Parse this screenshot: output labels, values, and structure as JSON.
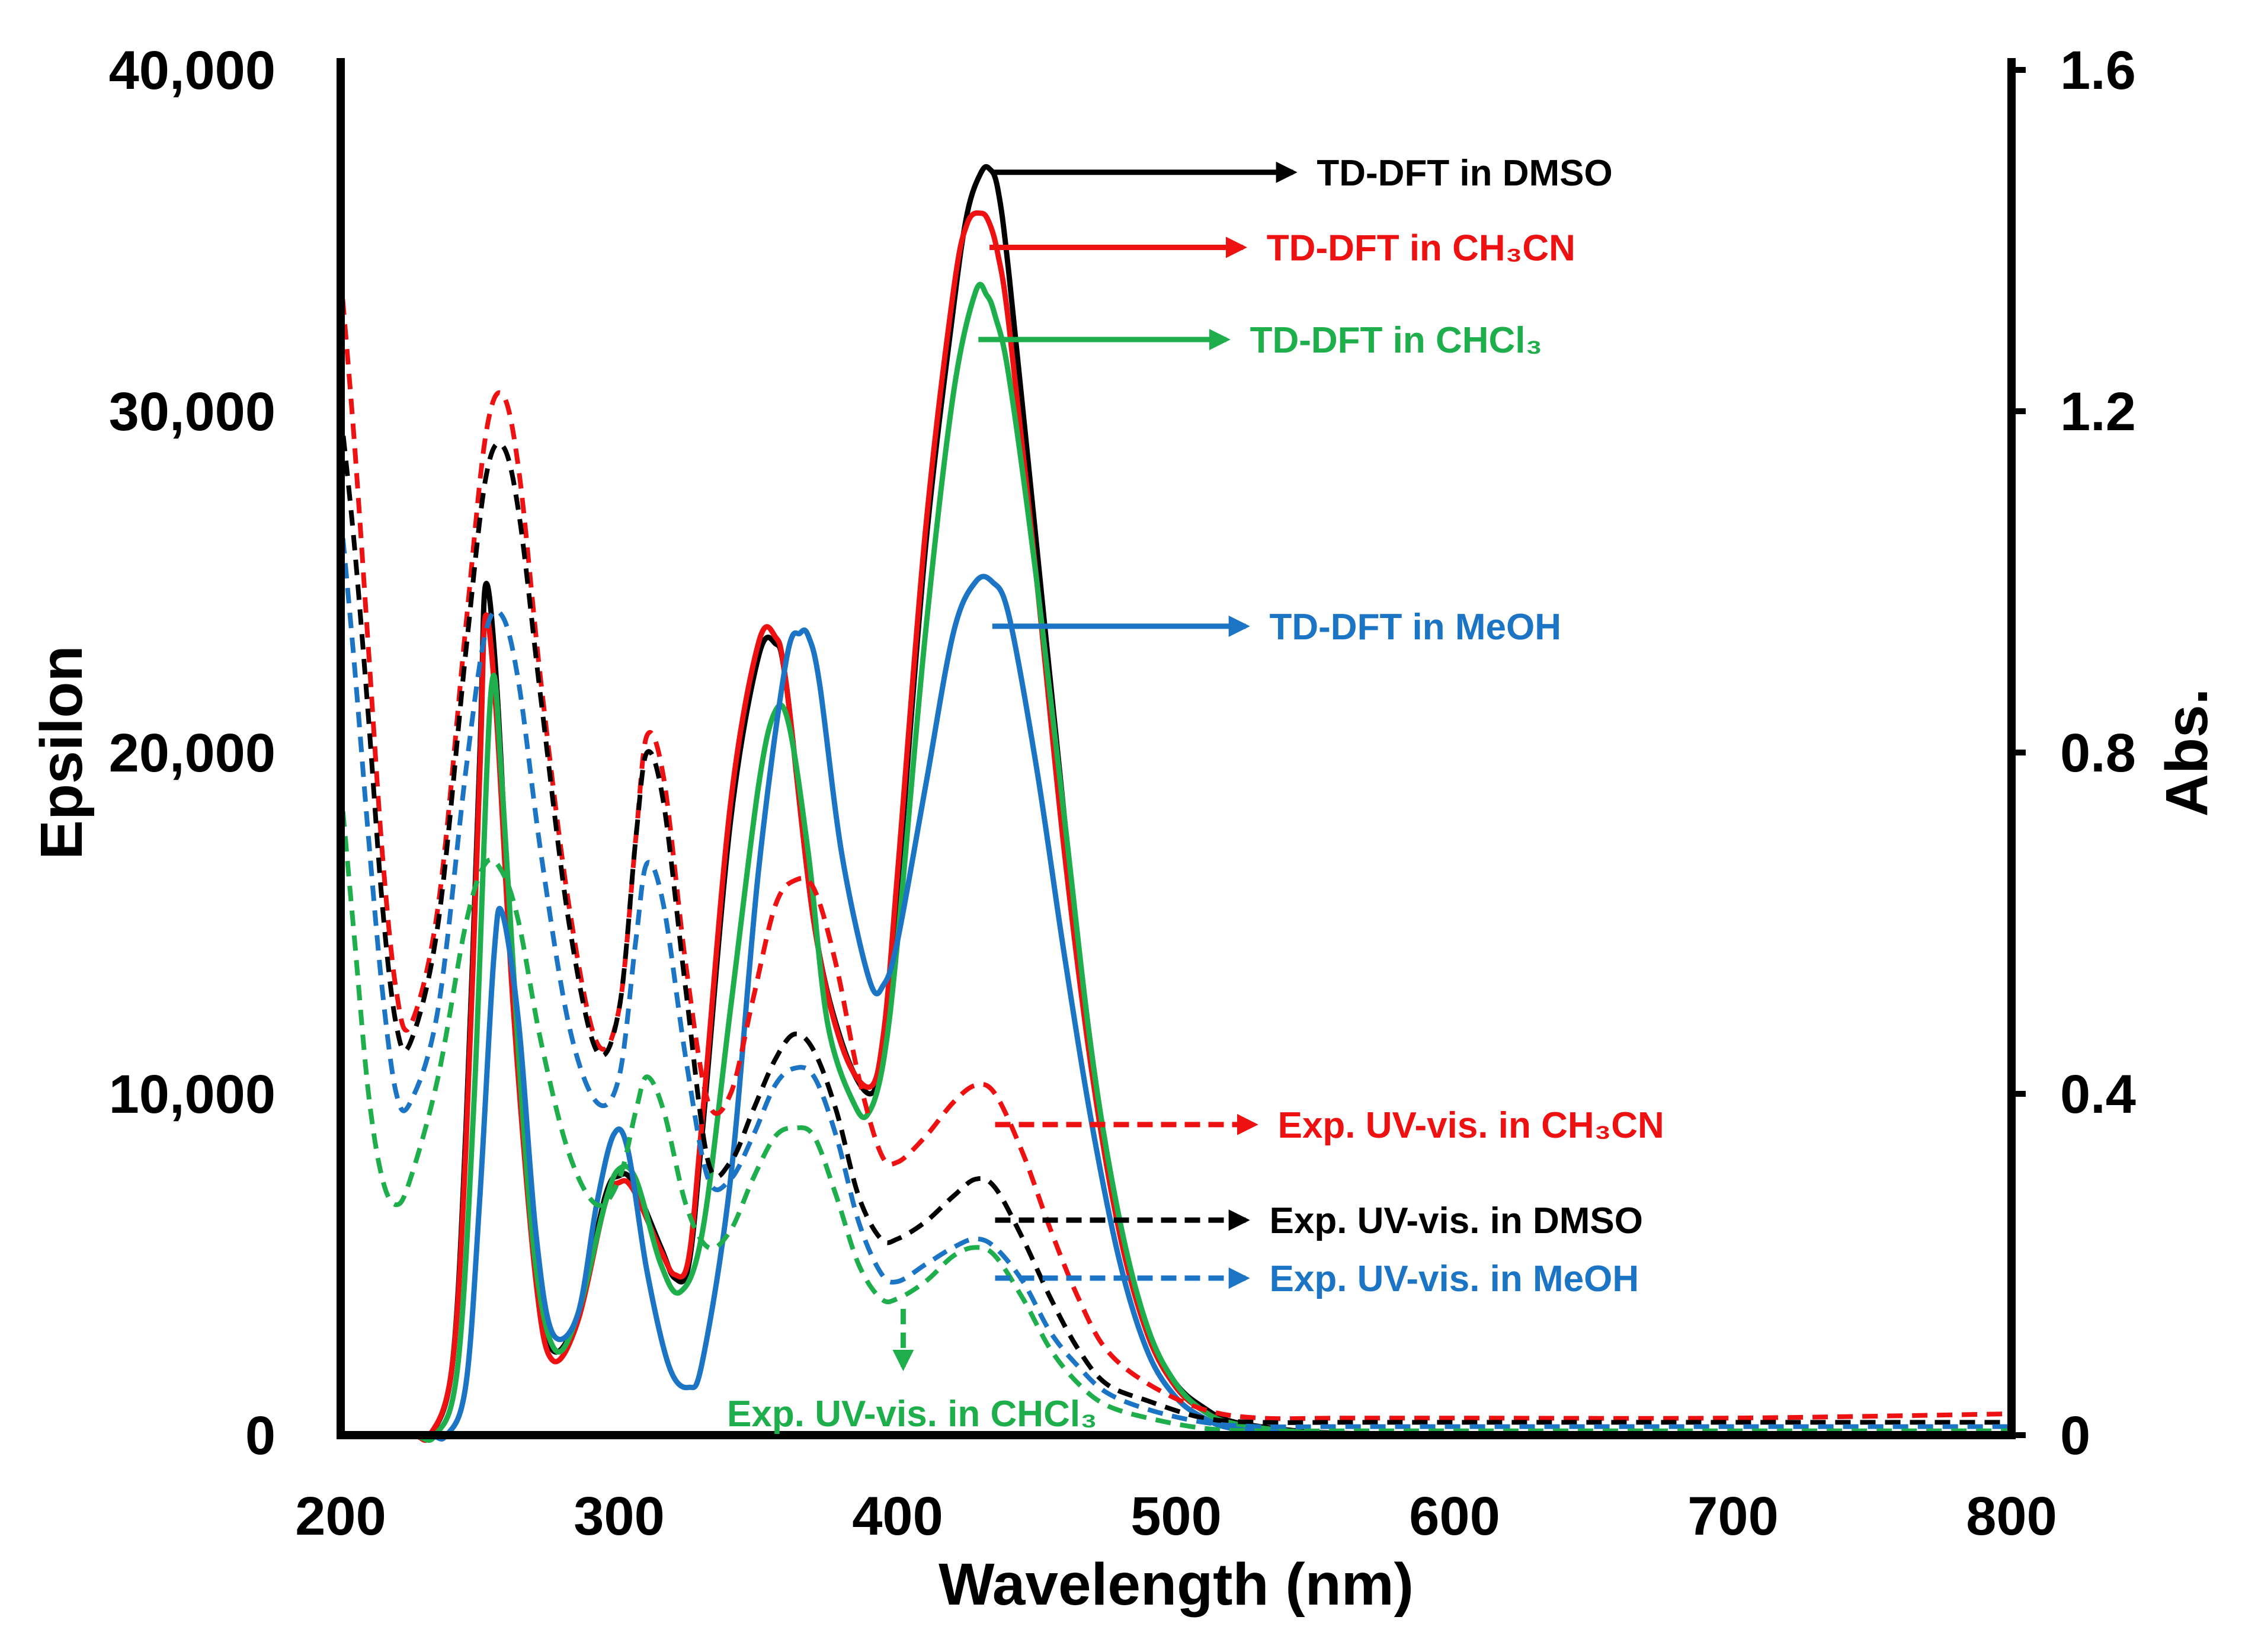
{
  "chart_data": {
    "type": "line",
    "xlabel": "Wavelength (nm)",
    "ylabel": "Epsilon",
    "y2label": "Abs.",
    "xlim": [
      200,
      800
    ],
    "ylim": [
      0,
      40000
    ],
    "y2lim": [
      0,
      1.6
    ],
    "x_ticks": [
      200,
      300,
      400,
      500,
      600,
      700,
      800
    ],
    "y_ticks": [
      0,
      10000,
      20000,
      30000,
      40000
    ],
    "y_tick_labels": [
      "0",
      "10,000",
      "20,000",
      "30,000",
      "40,000"
    ],
    "y2_ticks": [
      0,
      0.4,
      0.8,
      1.2,
      1.6
    ],
    "y2_tick_labels": [
      "0",
      "0.4",
      "0.8",
      "1.2",
      "1.6"
    ],
    "grid": false,
    "colors": {
      "dmso": "#000000",
      "ch3cn": "#ee1111",
      "chcl3": "#1fae4c",
      "meoh": "#1c74c4"
    },
    "series": [
      {
        "name": "TD-DFT in DMSO",
        "axis": "left",
        "style": "solid",
        "color": "#000000",
        "x": [
          200,
          225,
          232,
          240,
          245,
          250,
          252,
          256,
          262,
          270,
          276,
          285,
          295,
          300,
          305,
          315,
          320,
          325,
          330,
          340,
          350,
          356,
          360,
          370,
          380,
          390,
          395,
          400,
          410,
          420,
          425,
          430,
          433,
          436,
          440,
          450,
          460,
          470,
          480,
          490,
          500,
          510,
          520,
          540,
          560,
          600,
          650,
          700,
          800
        ],
        "y": [
          0,
          0,
          0,
          2000,
          9000,
          20000,
          24900,
          22000,
          13000,
          5000,
          2500,
          3500,
          7000,
          7600,
          7400,
          5500,
          4600,
          5000,
          9000,
          18000,
          22800,
          23200,
          22000,
          15000,
          11500,
          10000,
          11500,
          16000,
          26000,
          33000,
          35800,
          37000,
          37100,
          36500,
          34000,
          26000,
          18000,
          11000,
          6000,
          3000,
          1500,
          800,
          400,
          150,
          50,
          0,
          0,
          0,
          0
        ]
      },
      {
        "name": "TD-DFT in CH₃CN",
        "axis": "left",
        "style": "solid",
        "color": "#ee1111",
        "x": [
          200,
          225,
          232,
          240,
          245,
          250,
          252,
          256,
          262,
          270,
          276,
          285,
          295,
          300,
          305,
          315,
          320,
          325,
          330,
          340,
          350,
          356,
          360,
          370,
          380,
          390,
          395,
          400,
          410,
          420,
          425,
          430,
          433,
          436,
          440,
          450,
          460,
          470,
          480,
          490,
          500,
          510,
          520,
          540,
          560,
          600,
          650,
          700,
          800
        ],
        "y": [
          0,
          0,
          0,
          2000,
          8500,
          19500,
          24000,
          21000,
          12500,
          4600,
          2200,
          3300,
          6800,
          7400,
          7200,
          5400,
          4700,
          5200,
          9400,
          18500,
          23200,
          23400,
          22000,
          15000,
          11400,
          10200,
          11800,
          16500,
          26500,
          33500,
          35500,
          35800,
          35500,
          34600,
          32500,
          25000,
          17000,
          10500,
          5800,
          2900,
          1400,
          700,
          350,
          120,
          40,
          0,
          0,
          0,
          0
        ]
      },
      {
        "name": "TD-DFT in CHCl₃",
        "axis": "left",
        "style": "solid",
        "color": "#1fae4c",
        "x": [
          200,
          225,
          234,
          242,
          248,
          254,
          258,
          264,
          270,
          277,
          285,
          295,
          300,
          306,
          315,
          322,
          330,
          340,
          350,
          356,
          361,
          368,
          375,
          385,
          390,
          395,
          400,
          410,
          420,
          428,
          432,
          435,
          440,
          450,
          460,
          470,
          480,
          490,
          500,
          510,
          520,
          540,
          560,
          600,
          700,
          800
        ],
        "y": [
          0,
          0,
          0,
          2000,
          10000,
          21800,
          19000,
          11000,
          5000,
          2500,
          3500,
          6800,
          7800,
          7500,
          5000,
          4200,
          6000,
          12500,
          19000,
          21200,
          20800,
          17000,
          12000,
          9600,
          9500,
          11000,
          14500,
          23500,
          30500,
          33500,
          33400,
          32800,
          31000,
          25000,
          18000,
          11000,
          6200,
          3100,
          1500,
          700,
          350,
          120,
          40,
          0,
          0,
          0
        ]
      },
      {
        "name": "TD-DFT in MeOH",
        "axis": "left",
        "style": "solid",
        "color": "#1c74c4",
        "x": [
          200,
          230,
          238,
          245,
          250,
          255,
          258,
          264,
          270,
          276,
          285,
          292,
          298,
          303,
          310,
          318,
          325,
          330,
          340,
          350,
          360,
          365,
          368,
          372,
          380,
          390,
          395,
          400,
          410,
          420,
          428,
          434,
          440,
          450,
          460,
          470,
          480,
          490,
          500,
          510,
          520,
          540,
          560,
          600,
          700,
          800
        ],
        "y": [
          0,
          0,
          0,
          1500,
          7000,
          14000,
          15300,
          12000,
          6000,
          3000,
          3500,
          6800,
          8800,
          8400,
          4800,
          2000,
          1400,
          2200,
          7500,
          16500,
          22700,
          23500,
          23400,
          22000,
          17000,
          13300,
          13200,
          14500,
          19000,
          23500,
          25000,
          25000,
          24000,
          19500,
          14000,
          9000,
          5000,
          2400,
          1100,
          500,
          200,
          60,
          0,
          0,
          0,
          0
        ]
      },
      {
        "name": "Exp. UV-vis. in CH₃CN",
        "axis": "right",
        "style": "dashed",
        "color": "#ee1111",
        "x": [
          200,
          205,
          210,
          215,
          220,
          225,
          235,
          245,
          252,
          258,
          264,
          272,
          282,
          292,
          300,
          306,
          310,
          316,
          324,
          332,
          340,
          348,
          356,
          363,
          370,
          378,
          386,
          394,
          400,
          410,
          420,
          428,
          435,
          445,
          455,
          465,
          475,
          490,
          510,
          530,
          560,
          600,
          700,
          800
        ],
        "y": [
          1.36,
          1.16,
          0.92,
          0.68,
          0.52,
          0.48,
          0.62,
          0.95,
          1.17,
          1.22,
          1.13,
          0.88,
          0.62,
          0.46,
          0.5,
          0.7,
          0.82,
          0.77,
          0.55,
          0.39,
          0.4,
          0.51,
          0.62,
          0.65,
          0.64,
          0.55,
          0.42,
          0.33,
          0.32,
          0.35,
          0.39,
          0.41,
          0.4,
          0.33,
          0.24,
          0.16,
          0.1,
          0.06,
          0.03,
          0.02,
          0.02,
          0.02,
          0.02,
          0.025
        ]
      },
      {
        "name": "Exp. UV-vis. in DMSO",
        "axis": "right",
        "style": "dashed",
        "color": "#000000",
        "x": [
          200,
          205,
          210,
          215,
          220,
          225,
          235,
          245,
          252,
          258,
          264,
          272,
          282,
          292,
          300,
          306,
          310,
          316,
          324,
          332,
          340,
          348,
          356,
          363,
          370,
          378,
          386,
          394,
          400,
          410,
          420,
          428,
          435,
          445,
          455,
          465,
          475,
          490,
          510,
          530,
          560,
          600,
          700,
          800
        ],
        "y": [
          1.2,
          1.04,
          0.84,
          0.62,
          0.48,
          0.46,
          0.6,
          0.92,
          1.12,
          1.16,
          1.08,
          0.86,
          0.6,
          0.45,
          0.5,
          0.7,
          0.8,
          0.74,
          0.52,
          0.32,
          0.32,
          0.38,
          0.44,
          0.47,
          0.45,
          0.38,
          0.28,
          0.23,
          0.23,
          0.25,
          0.28,
          0.3,
          0.29,
          0.23,
          0.16,
          0.1,
          0.06,
          0.04,
          0.02,
          0.015,
          0.015,
          0.015,
          0.015,
          0.015
        ]
      },
      {
        "name": "Exp. UV-vis. in MeOH",
        "axis": "right",
        "style": "dashed",
        "color": "#1c74c4",
        "x": [
          200,
          205,
          210,
          215,
          220,
          225,
          235,
          245,
          252,
          258,
          264,
          272,
          282,
          292,
          300,
          306,
          310,
          316,
          324,
          332,
          340,
          348,
          356,
          363,
          370,
          378,
          386,
          394,
          400,
          410,
          420,
          428,
          435,
          445,
          455,
          465,
          475,
          490,
          510,
          530,
          560,
          600,
          700,
          800
        ],
        "y": [
          1.08,
          0.9,
          0.7,
          0.52,
          0.4,
          0.39,
          0.5,
          0.78,
          0.94,
          0.96,
          0.88,
          0.68,
          0.48,
          0.39,
          0.42,
          0.58,
          0.67,
          0.62,
          0.44,
          0.3,
          0.3,
          0.35,
          0.41,
          0.43,
          0.42,
          0.35,
          0.25,
          0.19,
          0.18,
          0.2,
          0.22,
          0.23,
          0.22,
          0.18,
          0.12,
          0.08,
          0.05,
          0.03,
          0.015,
          0.01,
          0.01,
          0.01,
          0.01,
          0.01
        ]
      },
      {
        "name": "Exp. UV-vis. in CHCl₃",
        "axis": "right",
        "style": "dashed",
        "color": "#1fae4c",
        "x": [
          200,
          205,
          210,
          215,
          220,
          225,
          235,
          245,
          252,
          258,
          264,
          272,
          282,
          292,
          300,
          306,
          310,
          316,
          324,
          332,
          340,
          348,
          356,
          363,
          370,
          378,
          386,
          394,
          400,
          410,
          420,
          428,
          435,
          445,
          455,
          465,
          475,
          490,
          510,
          530,
          560,
          600,
          700,
          800
        ],
        "y": [
          0.76,
          0.58,
          0.4,
          0.3,
          0.27,
          0.3,
          0.42,
          0.6,
          0.67,
          0.66,
          0.6,
          0.46,
          0.33,
          0.27,
          0.3,
          0.38,
          0.42,
          0.38,
          0.27,
          0.22,
          0.24,
          0.3,
          0.35,
          0.36,
          0.35,
          0.28,
          0.2,
          0.16,
          0.16,
          0.18,
          0.21,
          0.22,
          0.21,
          0.16,
          0.1,
          0.06,
          0.035,
          0.02,
          0.008,
          0.005,
          0.005,
          0.005,
          0.005,
          0.005
        ]
      }
    ],
    "annotations": [
      {
        "id": "td-dmso",
        "text": "TD-DFT in DMSO",
        "color": "#000000",
        "style": "solid",
        "axis": "left",
        "from": [
          434,
          37000
        ],
        "to": [
          542,
          37000
        ]
      },
      {
        "id": "td-ch3cn",
        "text": "TD-DFT in CH₃CN",
        "color": "#ee1111",
        "style": "solid",
        "axis": "left",
        "from": [
          433,
          34800
        ],
        "to": [
          524,
          34800
        ]
      },
      {
        "id": "td-chcl3",
        "text": "TD-DFT in CHCl₃",
        "color": "#1fae4c",
        "style": "solid",
        "axis": "left",
        "from": [
          429,
          32100
        ],
        "to": [
          518,
          32100
        ]
      },
      {
        "id": "td-meoh",
        "text": "TD-DFT in MeOH",
        "color": "#1c74c4",
        "style": "solid",
        "axis": "left",
        "from": [
          434,
          23700
        ],
        "to": [
          525,
          23700
        ]
      },
      {
        "id": "exp-ch3cn",
        "text": "Exp. UV-vis. in CH₃CN",
        "color": "#ee1111",
        "style": "dashed",
        "axis": "left",
        "from": [
          435,
          9100
        ],
        "to": [
          528,
          9100
        ]
      },
      {
        "id": "exp-dmso",
        "text": "Exp. UV-vis. in DMSO",
        "color": "#000000",
        "style": "dashed",
        "axis": "left",
        "from": [
          435,
          6300
        ],
        "to": [
          525,
          6300
        ]
      },
      {
        "id": "exp-meoh",
        "text": "Exp. UV-vis. in MeOH",
        "color": "#1c74c4",
        "style": "dashed",
        "axis": "left",
        "from": [
          435,
          4600
        ],
        "to": [
          525,
          4600
        ]
      },
      {
        "id": "exp-chcl3",
        "text": "Exp. UV-vis. in CHCl₃",
        "color": "#1fae4c",
        "style": "dashed",
        "axis": "left",
        "from": [
          402,
          3700
        ],
        "to": [
          402,
          2000
        ]
      }
    ]
  }
}
